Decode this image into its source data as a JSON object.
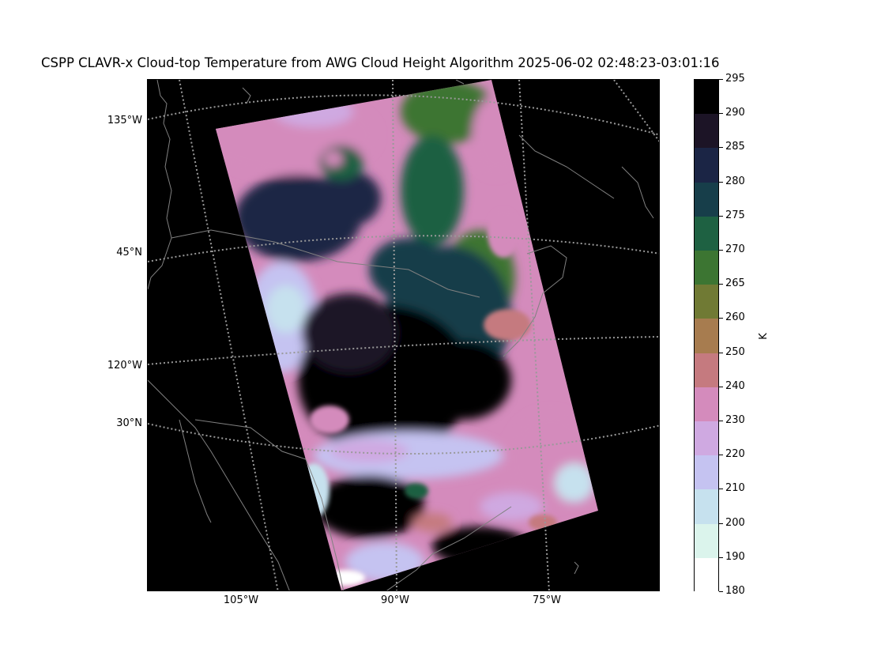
{
  "title": "CSPP CLAVR-x Cloud-top Temperature from AWG Cloud Height Algorithm 2025-06-02 02:48:23-03:01:16",
  "map": {
    "left_labels": [
      "135°W",
      "45°N",
      "120°W",
      "30°N"
    ],
    "bottom_labels": [
      "105°W",
      "90°W",
      "75°W"
    ],
    "background_color": "#000000",
    "coastline_color": "#808080",
    "graticule_color": "#999999"
  },
  "colorbar": {
    "unit": "K",
    "ticks": [
      "295",
      "290",
      "285",
      "280",
      "275",
      "270",
      "265",
      "260",
      "250",
      "240",
      "230",
      "220",
      "210",
      "200",
      "190",
      "180"
    ],
    "colors": [
      "#000000",
      "#1c1426",
      "#1b2545",
      "#173e4a",
      "#1e6142",
      "#3c7532",
      "#707a34",
      "#a77c4f",
      "#c57a7f",
      "#d48bbc",
      "#cfa9e1",
      "#c5c3f1",
      "#c6e1ee",
      "#dbf4ec",
      "#ffffff"
    ]
  }
}
